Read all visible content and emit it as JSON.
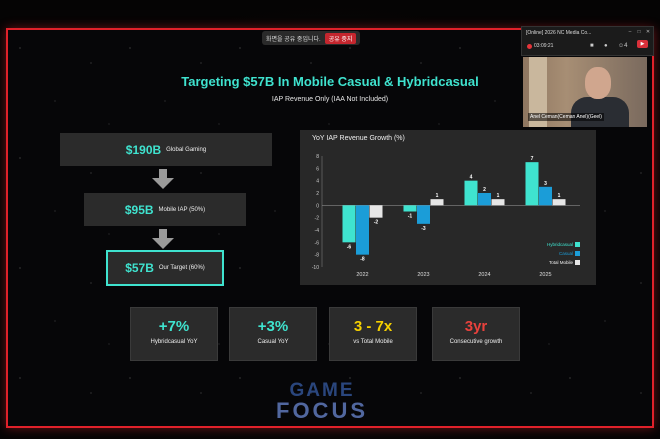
{
  "share_bar": {
    "text": "화면을 공유 중입니다.",
    "stop_label": "공유 중지"
  },
  "slide": {
    "title": "Targeting $57B In Mobile Casual & Hybridcasual",
    "subtitle": "IAP Revenue Only (IAA Not Included)",
    "funnel": [
      {
        "value": "$190B",
        "label": "Global Gaming"
      },
      {
        "value": "$95B",
        "label": "Mobile IAP (50%)"
      },
      {
        "value": "$57B",
        "label": "Our Target (60%)"
      }
    ],
    "kpis": [
      {
        "value": "+7%",
        "label": "Hybridcasual YoY"
      },
      {
        "value": "+3%",
        "label": "Casual YoY"
      },
      {
        "value": "3 - 7x",
        "label": "vs Total Mobile"
      },
      {
        "value": "3yr",
        "label": "Consecutive growth"
      }
    ]
  },
  "chart_data": {
    "type": "bar",
    "title": "YoY IAP Revenue Growth (%)",
    "categories": [
      "2022",
      "2023",
      "2024",
      "2025"
    ],
    "series": [
      {
        "name": "Hybridcasual",
        "color": "#3fe3cf",
        "values": [
          -6,
          -1,
          4,
          7
        ]
      },
      {
        "name": "Casual",
        "color": "#1b9dd8",
        "values": [
          -8,
          -3,
          2,
          3
        ]
      },
      {
        "name": "Total Mobile",
        "color": "#e6e6e6",
        "values": [
          -2,
          1,
          1,
          1
        ]
      }
    ],
    "ylim": [
      -10,
      8
    ],
    "yticks": [
      8,
      6,
      4,
      2,
      0,
      -2,
      -4,
      -6,
      -8,
      -10
    ],
    "legend_position": "bottom-right",
    "grid": false
  },
  "call": {
    "window_title": "[Online] 2026 NC Media Co...",
    "timer": "03:09:21",
    "participant_count": "4",
    "participant_name": "Anel Ceman(Ceman Anel)(Geel)"
  },
  "watermark": {
    "line1": "GAME",
    "line2": "FOCUS"
  },
  "colors": {
    "accent": "#3fe3cf",
    "casual": "#1b9dd8",
    "highlight_yellow": "#f5d000",
    "highlight_red": "#e8413c",
    "border": "#e0212a"
  }
}
